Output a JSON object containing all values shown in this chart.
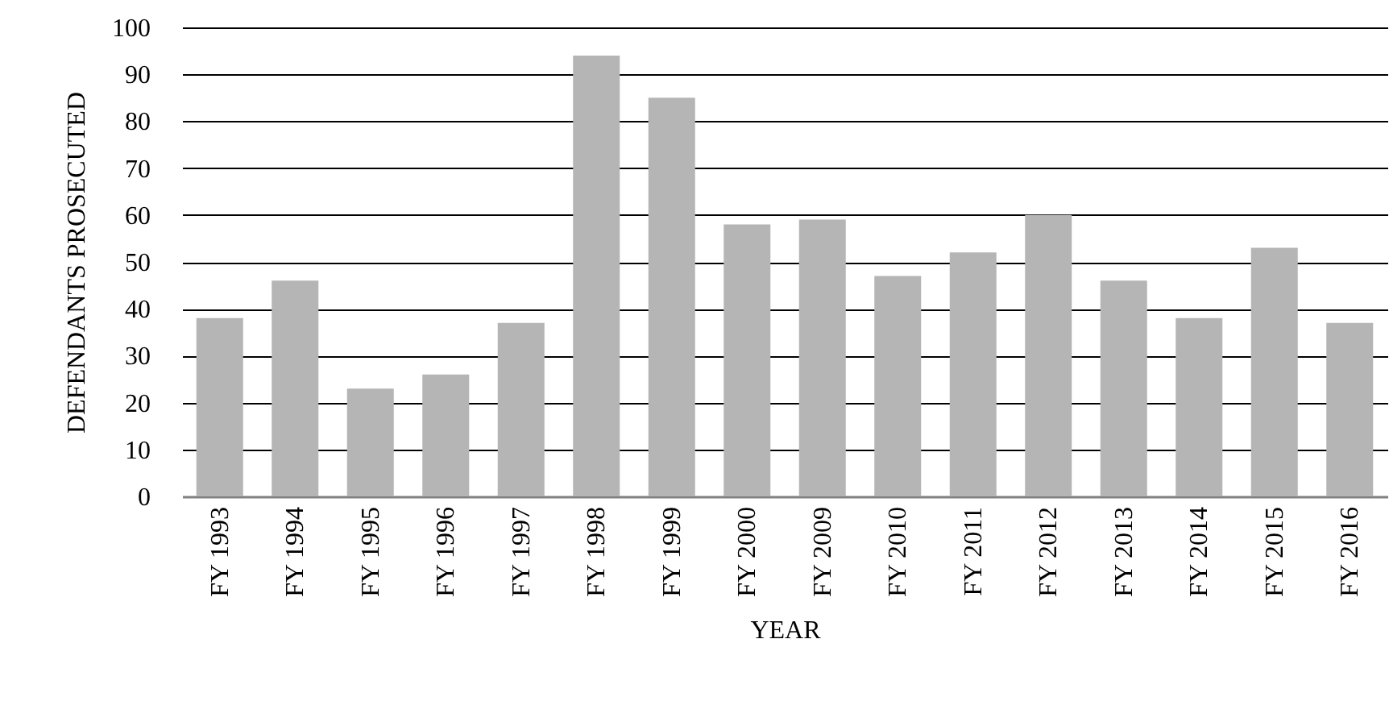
{
  "chart_data": {
    "type": "bar",
    "xlabel": "YEAR",
    "ylabel": "DEFENDANTS PROSECUTED",
    "categories": [
      "FY 1993",
      "FY 1994",
      "FY 1995",
      "FY 1996",
      "FY 1997",
      "FY 1998",
      "FY 1999",
      "FY 2000",
      "FY 2009",
      "FY 2010",
      "FY 2011",
      "FY 2012",
      "FY 2013",
      "FY 2014",
      "FY 2015",
      "FY 2016"
    ],
    "values": [
      38,
      46,
      23,
      26,
      37,
      94,
      85,
      58,
      59,
      47,
      52,
      60,
      46,
      38,
      53,
      37
    ],
    "color": "#b5b5b5",
    "ylim": [
      0,
      100
    ],
    "yticks": [
      0,
      10,
      20,
      30,
      40,
      50,
      60,
      70,
      80,
      90,
      100
    ],
    "grid": "y"
  }
}
